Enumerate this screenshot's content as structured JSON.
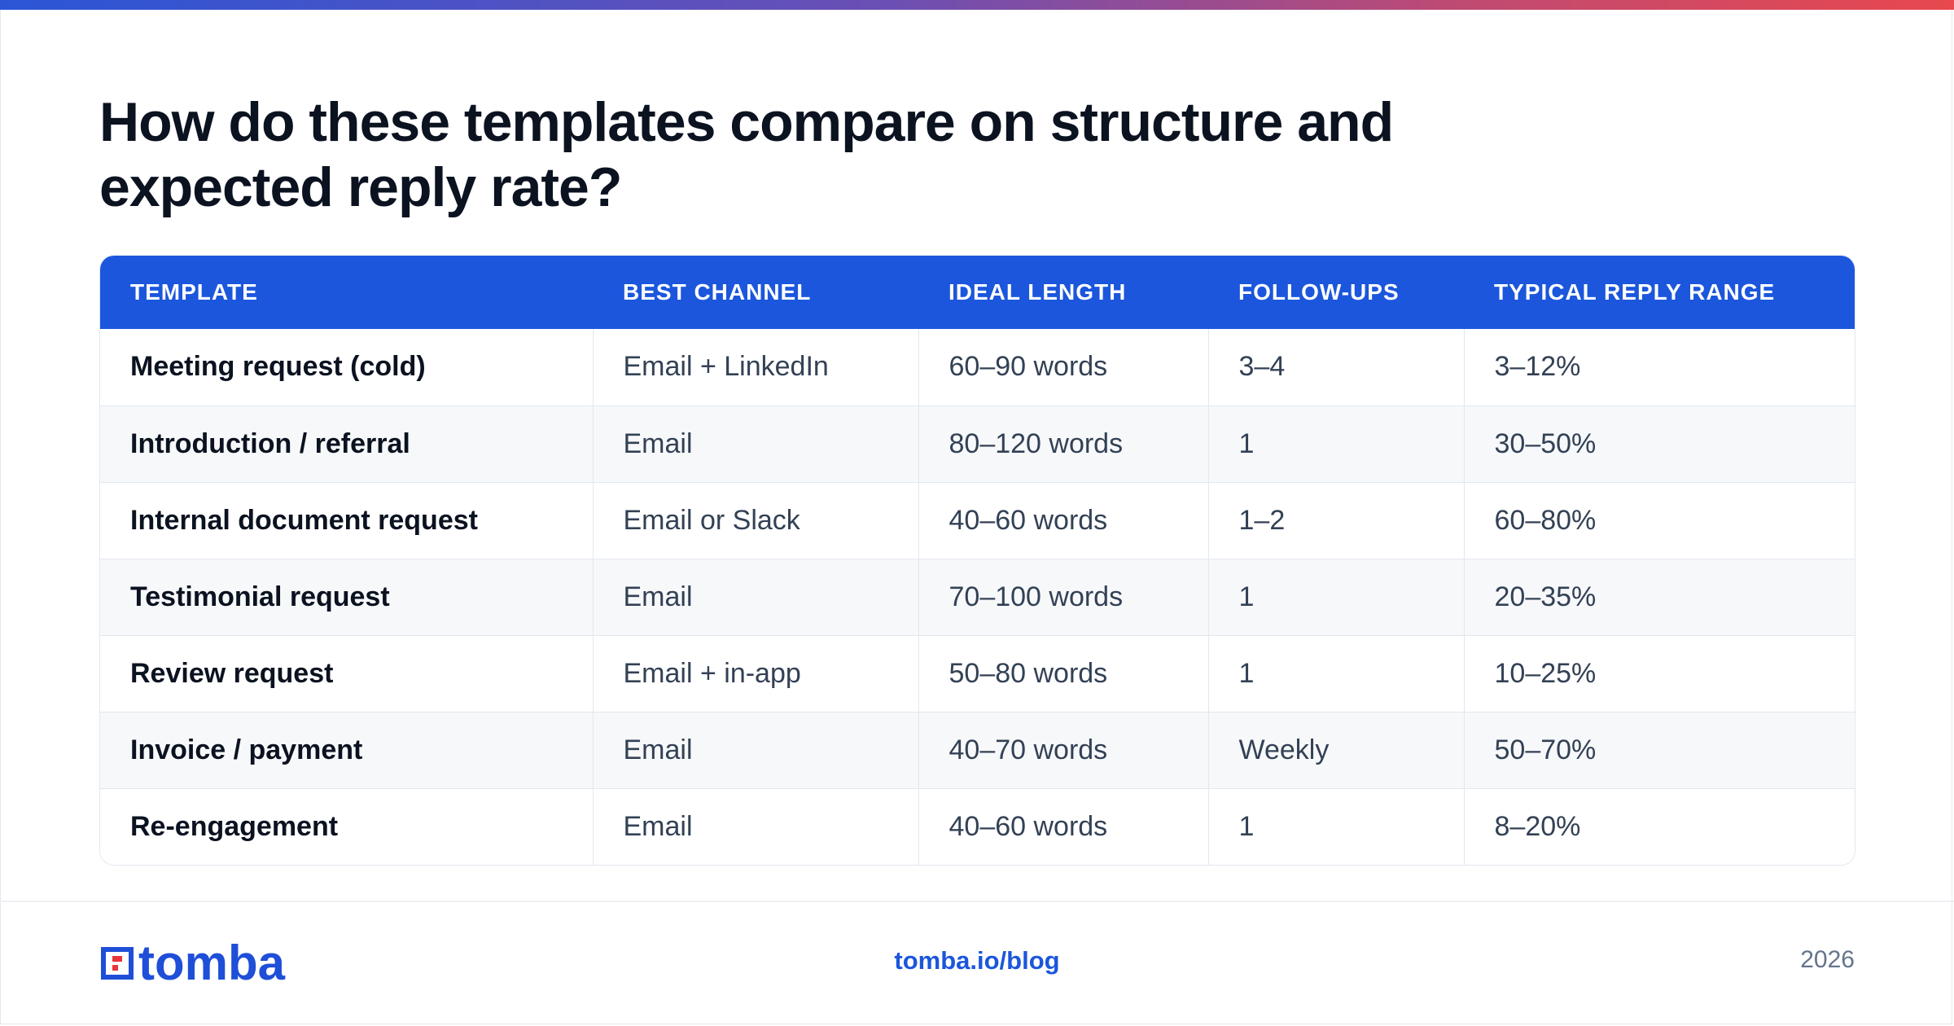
{
  "title": "How do these templates compare on structure and expected reply rate?",
  "table": {
    "headers": [
      "TEMPLATE",
      "BEST CHANNEL",
      "IDEAL LENGTH",
      "FOLLOW-UPS",
      "TYPICAL REPLY RANGE"
    ],
    "rows": [
      [
        "Meeting request (cold)",
        "Email + LinkedIn",
        "60–90 words",
        "3–4",
        "3–12%"
      ],
      [
        "Introduction / referral",
        "Email",
        "80–120 words",
        "1",
        "30–50%"
      ],
      [
        "Internal document request",
        "Email or Slack",
        "40–60 words",
        "1–2",
        "60–80%"
      ],
      [
        "Testimonial request",
        "Email",
        "70–100 words",
        "1",
        "20–35%"
      ],
      [
        "Review request",
        "Email + in-app",
        "50–80 words",
        "1",
        "10–25%"
      ],
      [
        "Invoice / payment",
        "Email",
        "40–70 words",
        "Weekly",
        "50–70%"
      ],
      [
        "Re-engagement",
        "Email",
        "40–60 words",
        "1",
        "8–20%"
      ]
    ]
  },
  "footer": {
    "logo_text": "tomba",
    "logo_icon": "tomba-logo-icon",
    "link": "tomba.io/blog",
    "year": "2026"
  },
  "colors": {
    "header_bg": "#1b56dc",
    "brand": "#1f4fd8",
    "logo_accent": "#e8353b",
    "gradient_start": "#2a56d6",
    "gradient_end": "#e8484e"
  }
}
